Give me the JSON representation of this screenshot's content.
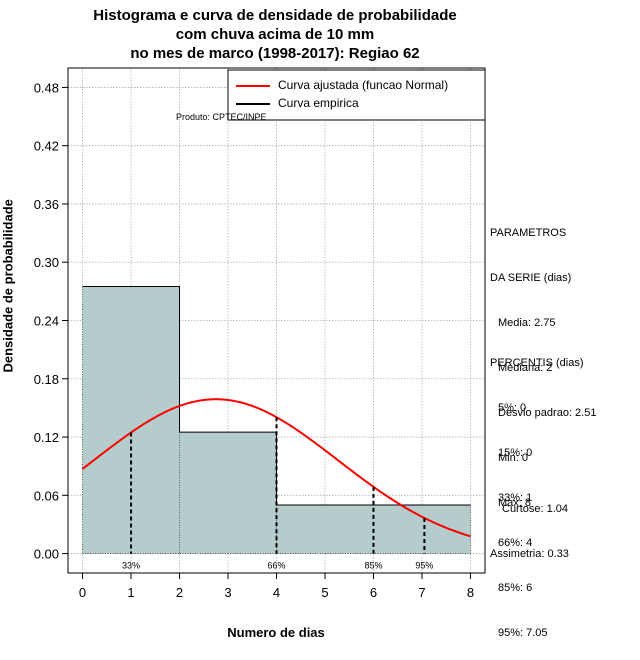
{
  "title_lines": [
    "Histograma e curva de densidade de probabilidade",
    "com chuva acima de 10 mm",
    "no mes de marco (1998-2017): Regiao 62"
  ],
  "produto": "Produto: CPTEC/INPE",
  "legend": {
    "fitted": "Curva ajustada (funcao Normal)",
    "empirical": "Curva empirica",
    "fitted_color": "#ff0000",
    "empirical_color": "#000000"
  },
  "parametros": {
    "header1": "PARAMETROS",
    "header2": "DA SERIE (dias)",
    "media": "Media: 2.75",
    "mediana": "Mediana: 2",
    "desvio": "Desvio padrao: 2.51",
    "min": "Min: 0",
    "max": "Max: 8"
  },
  "percentis": {
    "header": "PERCENTIS (dias)",
    "p5": "5%: 0",
    "p15": "15%: 0",
    "p33": "33%: 1",
    "p66": "66%: 4",
    "p85": "85%: 6",
    "p95": "95%: 7.05"
  },
  "stats": {
    "curtose": "Curtose: 1.04",
    "assimetria": "Assimetria: 0.33"
  },
  "chart_data": {
    "type": "bar",
    "title": "Histograma e curva de densidade de probabilidade com chuva acima de 10 mm no mes de marco (1998-2017): Regiao 62",
    "xlabel": "Numero de dias",
    "ylabel": "Densidade de probabilidade",
    "xlim": [
      -0.3,
      8.3
    ],
    "ylim": [
      -0.02,
      0.5
    ],
    "xticks": [
      0,
      1,
      2,
      3,
      4,
      5,
      6,
      7,
      8
    ],
    "yticks": [
      0.0,
      0.06,
      0.12,
      0.18,
      0.24,
      0.3,
      0.36,
      0.42,
      0.48
    ],
    "ytick_labels": [
      "0.00",
      "0.06",
      "0.12",
      "0.18",
      "0.24",
      "0.30",
      "0.36",
      "0.42",
      "0.48"
    ],
    "grid": true,
    "bar_color": "#b4cccc",
    "bins": [
      {
        "x0": 0,
        "x1": 2,
        "density": 0.275
      },
      {
        "x0": 2,
        "x1": 4,
        "density": 0.125
      },
      {
        "x0": 4,
        "x1": 8,
        "density": 0.05
      }
    ],
    "normal_fit": {
      "mean": 2.75,
      "sd": 2.51,
      "x_range": [
        0,
        8
      ]
    },
    "percentiles": [
      {
        "label": "33%",
        "x": 1
      },
      {
        "label": "66%",
        "x": 4
      },
      {
        "label": "85%",
        "x": 6
      },
      {
        "label": "95%",
        "x": 7.05
      }
    ],
    "legend_location": "top-right"
  }
}
